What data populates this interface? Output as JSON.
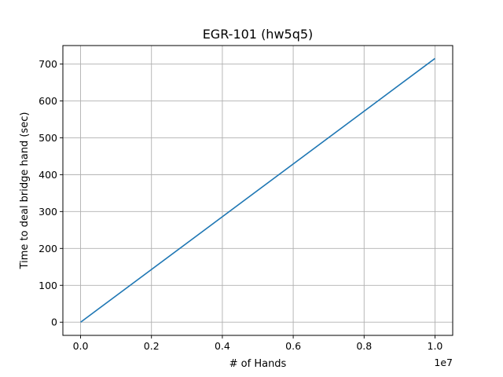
{
  "chart_data": {
    "type": "line",
    "title": "EGR-101 (hw5q5)",
    "xlabel": "# of Hands",
    "ylabel": "Time to deal bridge hand (sec)",
    "x_offset_label": "1e7",
    "xlim": [
      -500000,
      10500000
    ],
    "ylim": [
      -35.7,
      750
    ],
    "x_ticks": [
      0,
      2000000,
      4000000,
      6000000,
      8000000,
      10000000
    ],
    "x_tick_labels": [
      "0.0",
      "0.2",
      "0.4",
      "0.6",
      "0.8",
      "1.0"
    ],
    "y_ticks": [
      0,
      100,
      200,
      300,
      400,
      500,
      600,
      700
    ],
    "y_tick_labels": [
      "0",
      "100",
      "200",
      "300",
      "400",
      "500",
      "600",
      "700"
    ],
    "grid": true,
    "series": [
      {
        "color": "#1f77b4",
        "x": [
          0,
          10000000
        ],
        "y": [
          0,
          715
        ]
      }
    ]
  }
}
